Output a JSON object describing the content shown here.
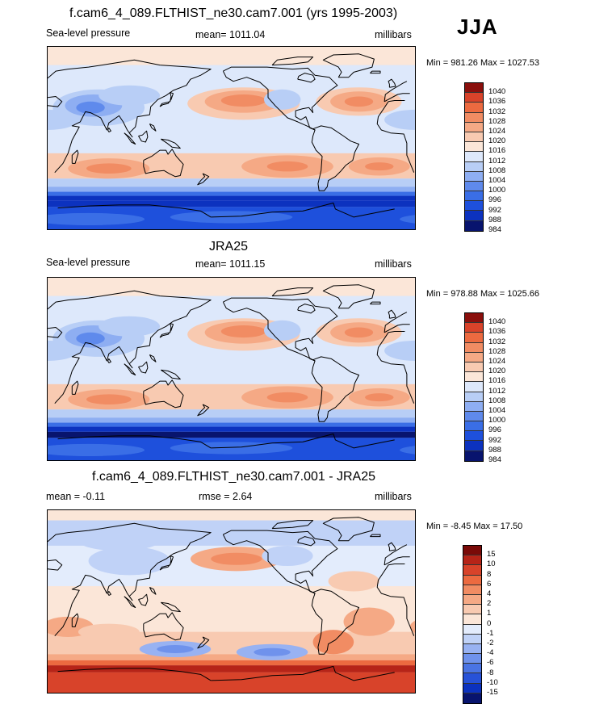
{
  "season": "JJA",
  "colors": {
    "abs_scale": [
      "#08146e",
      "#0c32bf",
      "#1e50dc",
      "#3a6ee6",
      "#5f8aec",
      "#8eaef2",
      "#b8cef6",
      "#dde8fb",
      "#fbe6d8",
      "#f8cab1",
      "#f5a985",
      "#f18c63",
      "#ec6a40",
      "#d8432a",
      "#8a0f0c"
    ],
    "diff_scale": [
      "#08146e",
      "#0c32bf",
      "#2752d8",
      "#4a74e4",
      "#6f92ec",
      "#98b2f2",
      "#c0d2f7",
      "#e3ecfc",
      "#fbe6d8",
      "#f8cab1",
      "#f5a985",
      "#f18c63",
      "#ec6a40",
      "#d8432a",
      "#b62418",
      "#7a0a08"
    ],
    "coast": "#000000"
  },
  "panels": [
    {
      "title": "f.cam6_4_089.FLTHIST_ne30.cam7.001 (yrs 1995-2003)",
      "left_label": "Sea-level pressure",
      "center_label": "mean= 1011.04",
      "units": "millibars",
      "minmax": "Min = 981.26 Max = 1027.53",
      "scale": "abs"
    },
    {
      "title": "JRA25",
      "left_label": "Sea-level pressure",
      "center_label": "mean= 1011.15",
      "units": "millibars",
      "minmax": "Min = 978.88 Max = 1025.66",
      "scale": "abs"
    },
    {
      "title": "f.cam6_4_089.FLTHIST_ne30.cam7.001 - JRA25",
      "left_label": "mean =  -0.11",
      "center_label": "rmse =   2.64",
      "units": "millibars",
      "minmax": "Min =  -8.45 Max =  17.50",
      "scale": "diff"
    }
  ],
  "colorbars": {
    "abs_levels": [
      "1040",
      "1036",
      "1032",
      "1028",
      "1024",
      "1020",
      "1016",
      "1012",
      "1008",
      "1004",
      "1000",
      "996",
      "992",
      "988",
      "984"
    ],
    "diff_levels": [
      "15",
      "10",
      "8",
      "6",
      "4",
      "2",
      "1",
      "0",
      "-1",
      "-2",
      "-4",
      "-6",
      "-8",
      "-10",
      "-15"
    ]
  }
}
